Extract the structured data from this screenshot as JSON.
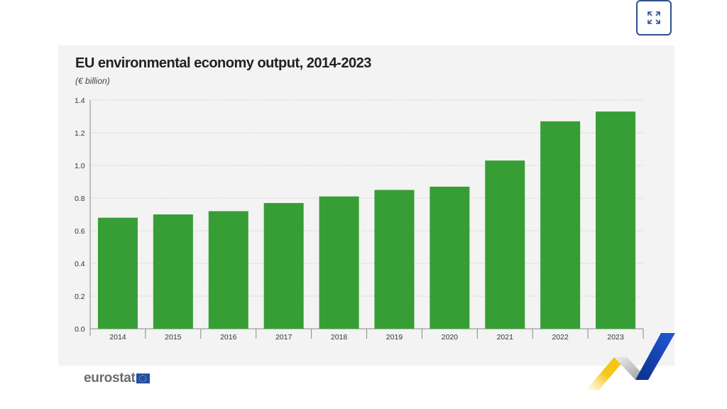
{
  "expand_button": {
    "icon": "expand-icon"
  },
  "chart_data": {
    "type": "bar",
    "title": "EU environmental economy output, 2014-2023",
    "subtitle": "(€ billion)",
    "categories": [
      "2014",
      "2015",
      "2016",
      "2017",
      "2018",
      "2019",
      "2020",
      "2021",
      "2022",
      "2023"
    ],
    "values": [
      0.68,
      0.7,
      0.72,
      0.77,
      0.81,
      0.85,
      0.87,
      1.03,
      1.27,
      1.33
    ],
    "ylim": [
      0,
      1.4
    ],
    "yticks": [
      "0.0",
      "0.2",
      "0.4",
      "0.6",
      "0.8",
      "1.0",
      "1.2",
      "1.4"
    ],
    "grid": true,
    "bar_color": "#369e34",
    "background_color": "#f3f3f3"
  },
  "footer": {
    "logo_text": "eurostat"
  }
}
